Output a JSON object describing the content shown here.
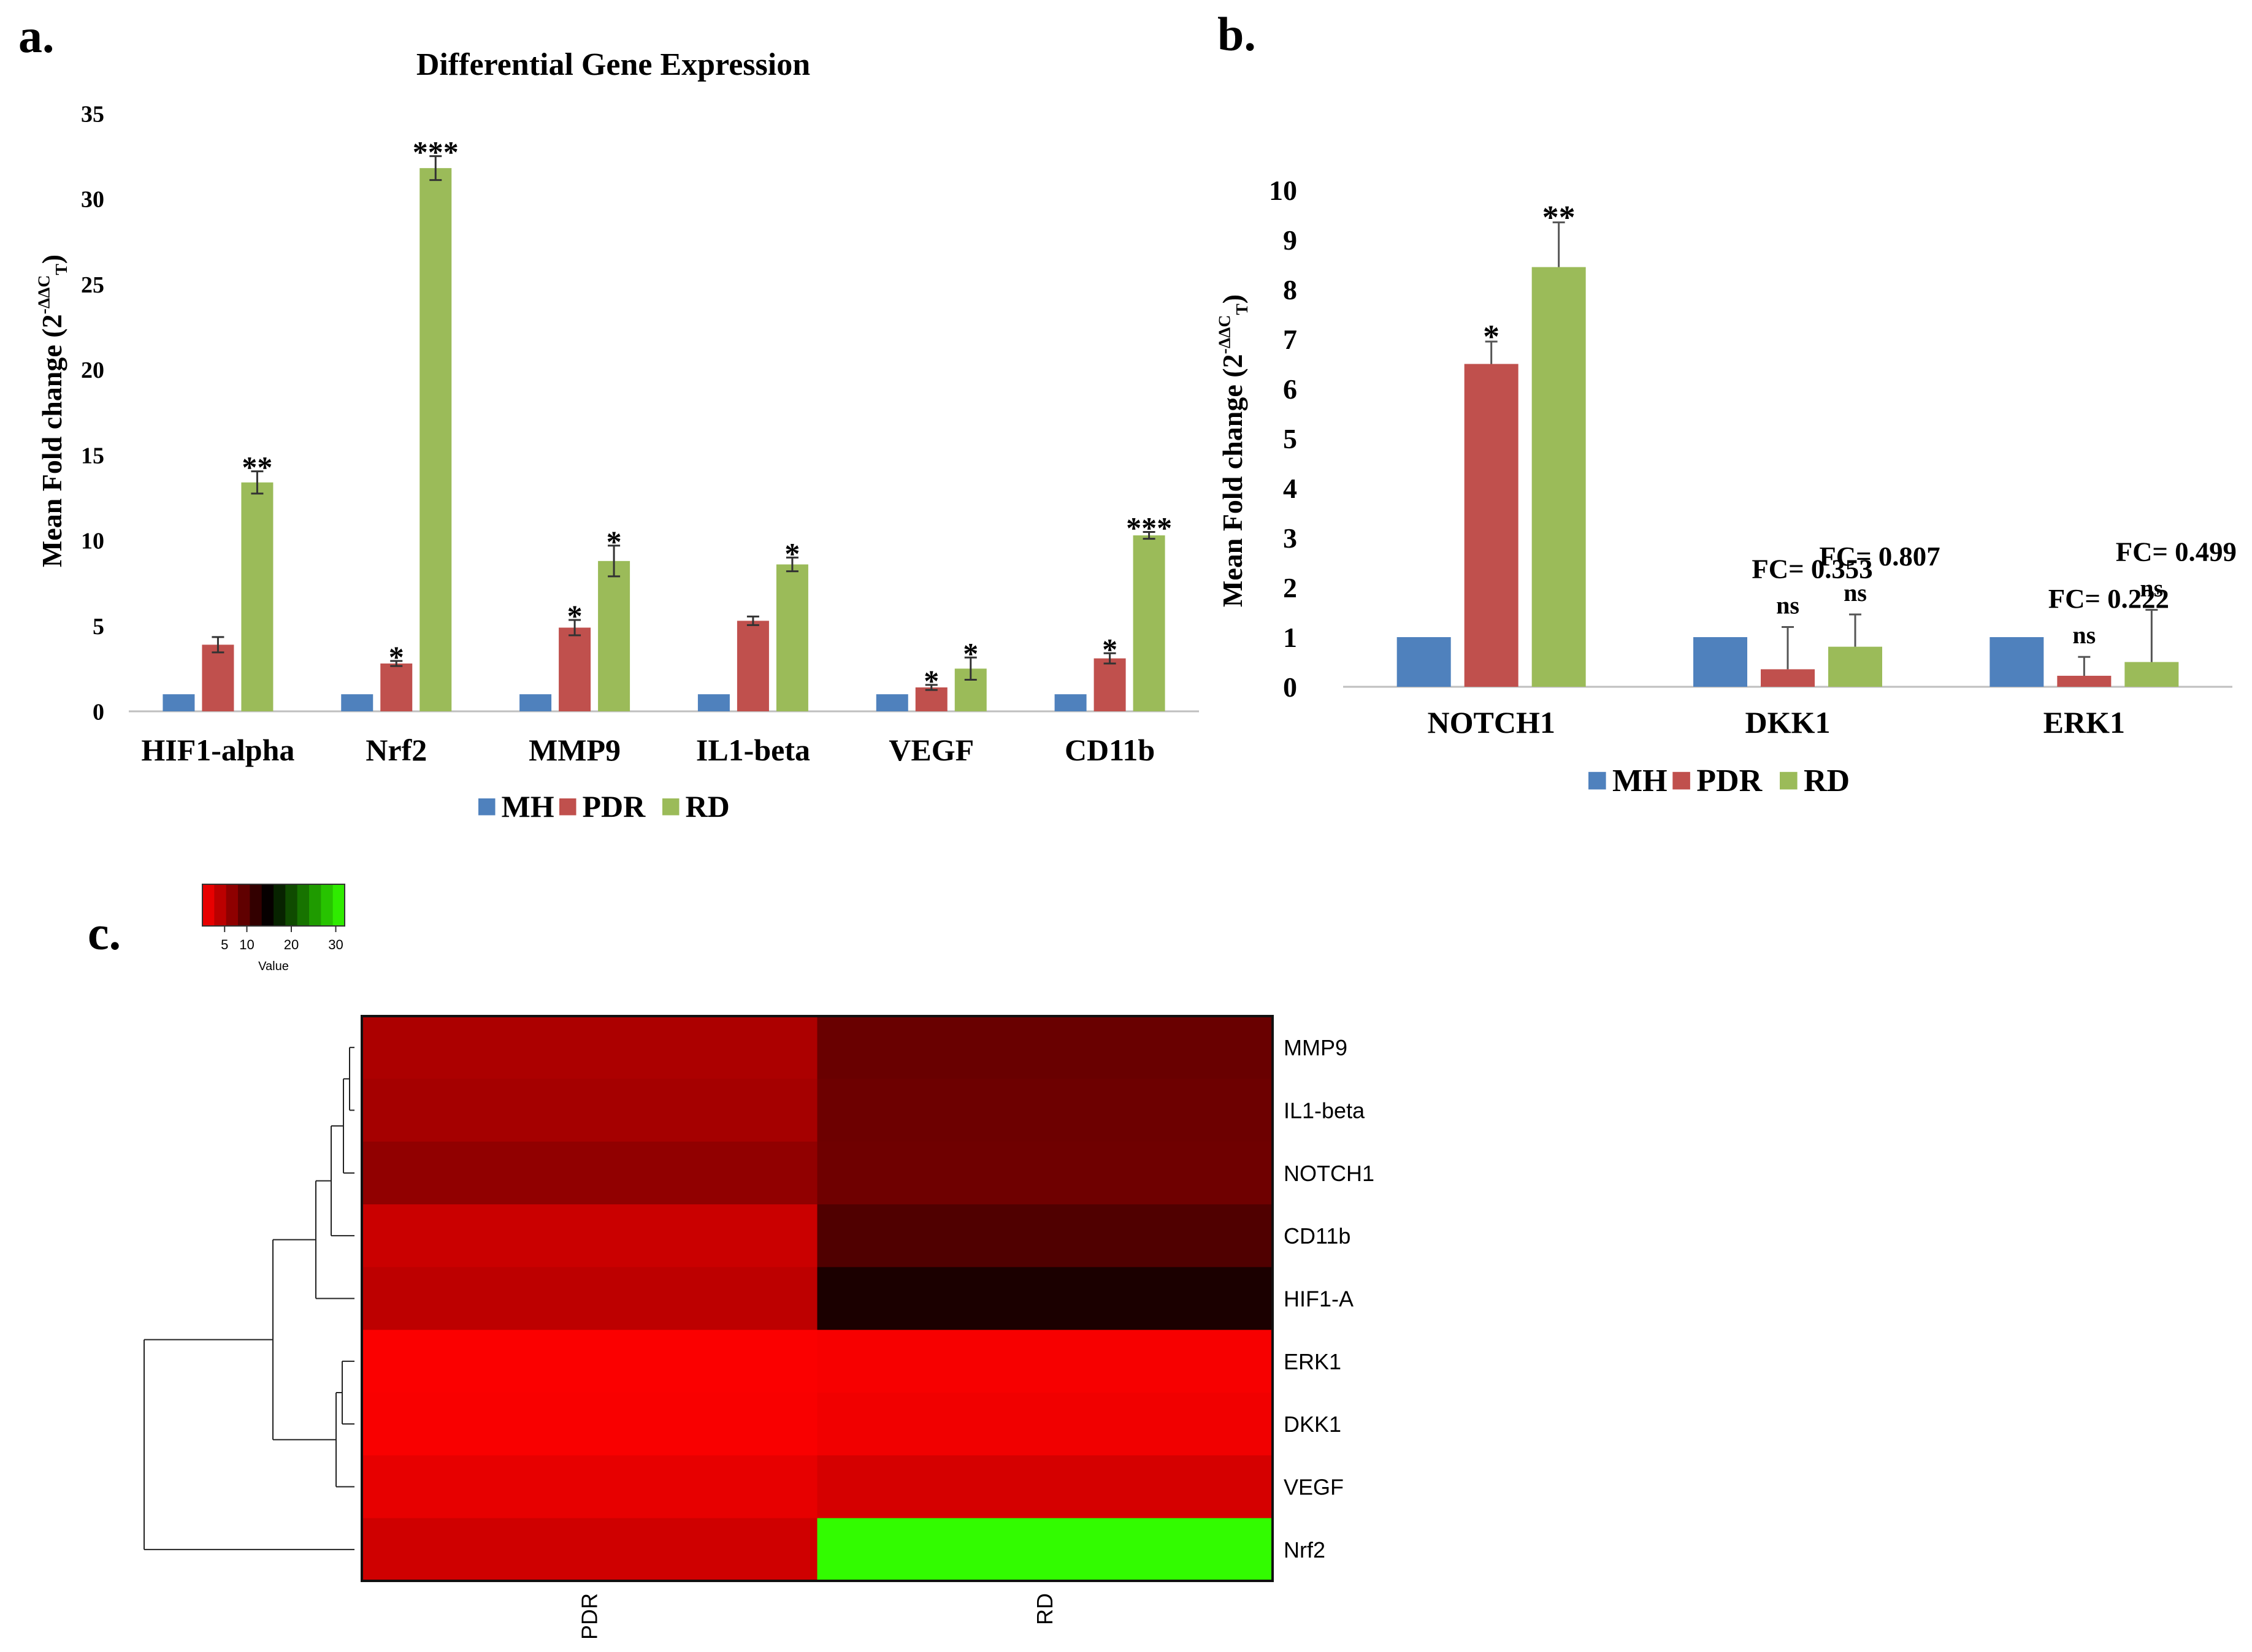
{
  "panel_labels": {
    "a": "a.",
    "b": "b.",
    "c": "c."
  },
  "colors": {
    "MH": "#4F81BD",
    "PDR": "#C0504D",
    "RD": "#9BBB59",
    "heat_low": "#ff0000",
    "heat_mid": "#000000",
    "heat_high": "#33ff00"
  },
  "chart_data": [
    {
      "type": "bar",
      "panel": "a",
      "title": "Differential Gene Expression",
      "ylabel": "Mean Fold change (2",
      "ylabel_sup": "-ΔΔC",
      "ylabel_sub": "T",
      "ylabel_tail": ")",
      "categories": [
        "HIF1-alpha",
        "Nrf2",
        "MMP9",
        "IL1-beta",
        "VEGF",
        "CD11b"
      ],
      "series": [
        {
          "name": "MH",
          "values": [
            1,
            1,
            1,
            1,
            1,
            1
          ],
          "errors": [
            0,
            0,
            0,
            0,
            0,
            0
          ],
          "marks": [
            "",
            "",
            "",
            "",
            "",
            ""
          ]
        },
        {
          "name": "PDR",
          "values": [
            3.9,
            2.8,
            4.9,
            5.3,
            1.4,
            3.1
          ],
          "errors": [
            0.45,
            0.15,
            0.45,
            0.25,
            0.15,
            0.3
          ],
          "marks": [
            "",
            "*",
            "*",
            "",
            "*",
            "*"
          ]
        },
        {
          "name": "RD",
          "values": [
            13.4,
            31.8,
            8.8,
            8.6,
            2.5,
            10.3
          ],
          "errors": [
            0.65,
            0.7,
            0.9,
            0.4,
            0.65,
            0.2
          ],
          "marks": [
            "**",
            "***",
            "*",
            "*",
            "*",
            "***"
          ]
        }
      ],
      "ylim": [
        0,
        35
      ],
      "yticks": [
        0,
        5,
        10,
        15,
        20,
        25,
        30,
        35
      ],
      "grid": false,
      "legend": "bottom"
    },
    {
      "type": "bar",
      "panel": "b",
      "title": "",
      "ylabel": "Mean Fold change (2",
      "ylabel_sup": "-ΔΔC",
      "ylabel_sub": "T",
      "ylabel_tail": ")",
      "categories": [
        "NOTCH1",
        "DKK1",
        "ERK1"
      ],
      "series": [
        {
          "name": "MH",
          "values": [
            1,
            1,
            1
          ],
          "errors": [
            0,
            0,
            0
          ],
          "marks": [
            "",
            "",
            ""
          ]
        },
        {
          "name": "PDR",
          "values": [
            6.5,
            0.353,
            0.222
          ],
          "errors": [
            0.45,
            0.85,
            0.38
          ],
          "marks": [
            "*",
            "ns",
            "ns"
          ]
        },
        {
          "name": "RD",
          "values": [
            8.45,
            0.807,
            0.499
          ],
          "errors": [
            0.9,
            0.65,
            1.05
          ],
          "marks": [
            "**",
            "ns",
            "ns"
          ]
        }
      ],
      "annotations": [
        {
          "category": "DKK1",
          "series": "PDR",
          "text": "FC= 0.353"
        },
        {
          "category": "DKK1",
          "series": "RD",
          "text": "FC= 0.807"
        },
        {
          "category": "ERK1",
          "series": "PDR",
          "text": "FC= 0.222"
        },
        {
          "category": "ERK1",
          "series": "RD",
          "text": "FC= 0.499"
        }
      ],
      "ylim": [
        0,
        10
      ],
      "yticks": [
        0,
        1,
        2,
        3,
        4,
        5,
        6,
        7,
        8,
        9,
        10
      ],
      "grid": false,
      "legend": "bottom"
    },
    {
      "type": "heatmap",
      "panel": "c",
      "columns": [
        "PDR",
        "RD"
      ],
      "rows": [
        "MMP9",
        "IL1-beta",
        "NOTCH1",
        "CD11b",
        "HIF1-A",
        "ERK1",
        "DKK1",
        "VEGF",
        "Nrf2"
      ],
      "values": [
        [
          4.9,
          8.8
        ],
        [
          5.3,
          8.6
        ],
        [
          6.5,
          8.45
        ],
        [
          3.1,
          10.3
        ],
        [
          3.9,
          13.4
        ],
        [
          0.222,
          0.499
        ],
        [
          0.353,
          0.807
        ],
        [
          1.4,
          2.5
        ],
        [
          2.8,
          31.8
        ]
      ],
      "color_key": {
        "title": "Value",
        "ticks": [
          5,
          10,
          20,
          30
        ],
        "range": [
          0,
          32
        ]
      },
      "dendrogram": "rows"
    }
  ]
}
